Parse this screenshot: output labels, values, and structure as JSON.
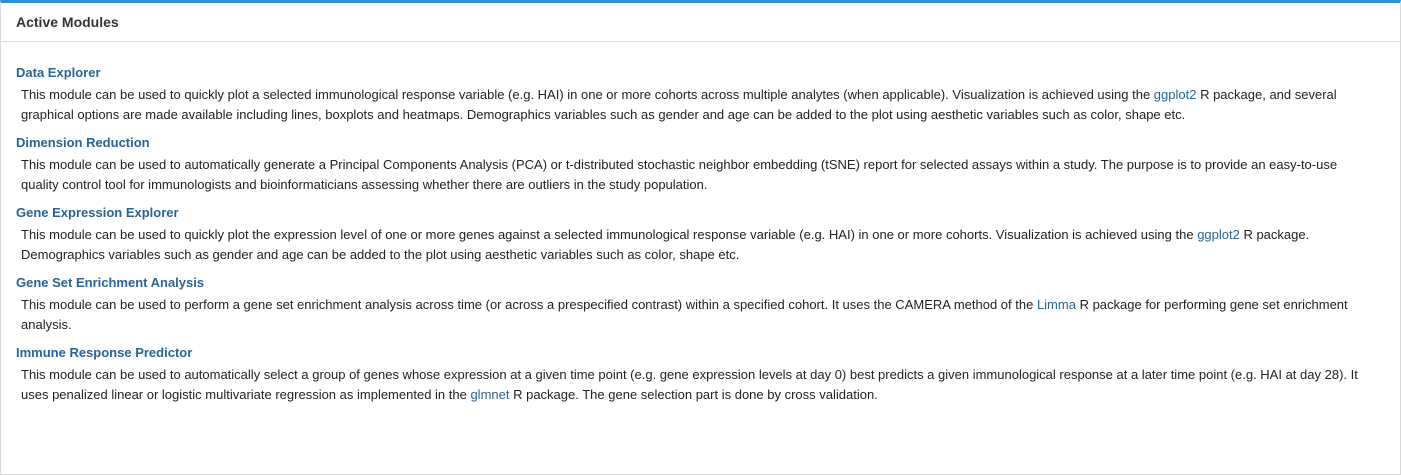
{
  "panel": {
    "title": "Active Modules"
  },
  "colors": {
    "accent_top_border": "#2b8fd0",
    "link": "#2a6496"
  },
  "modules": [
    {
      "title": "Data Explorer",
      "desc_before": "This module can be used to quickly plot a selected immunological response variable (e.g. HAI) in one or more cohorts across multiple analytes (when applicable). Visualization is achieved using the ",
      "link": "ggplot2",
      "desc_after": " R package, and several graphical options are made available including lines, boxplots and heatmaps. Demographics variables such as gender and age can be added to the plot using aesthetic variables such as color, shape etc."
    },
    {
      "title": "Dimension Reduction",
      "desc_before": "This module can be used to automatically generate a Principal Components Analysis (PCA) or t-distributed stochastic neighbor embedding (tSNE) report for selected assays within a study. The purpose is to provide an easy-to-use quality control tool for immunologists and bioinformaticians assessing whether there are outliers in the study population.",
      "link": "",
      "desc_after": ""
    },
    {
      "title": "Gene Expression Explorer",
      "desc_before": "This module can be used to quickly plot the expression level of one or more genes against a selected immunological response variable (e.g. HAI) in one or more cohorts. Visualization is achieved using the ",
      "link": "ggplot2",
      "desc_after": " R package. Demographics variables such as gender and age can be added to the plot using aesthetic variables such as color, shape etc."
    },
    {
      "title": "Gene Set Enrichment Analysis",
      "desc_before": "This module can be used to perform a gene set enrichment analysis across time (or across a prespecified contrast) within a specified cohort. It uses the CAMERA method of the ",
      "link": "Limma",
      "desc_after": " R package for performing gene set enrichment analysis."
    },
    {
      "title": "Immune Response Predictor",
      "desc_before": "This module can be used to automatically select a group of genes whose expression at a given time point (e.g. gene expression levels at day 0) best predicts a given immunological response at a later time point (e.g. HAI at day 28). It uses penalized linear or logistic multivariate regression as implemented in the ",
      "link": "glmnet",
      "desc_after": " R package. The gene selection part is done by cross validation."
    }
  ]
}
